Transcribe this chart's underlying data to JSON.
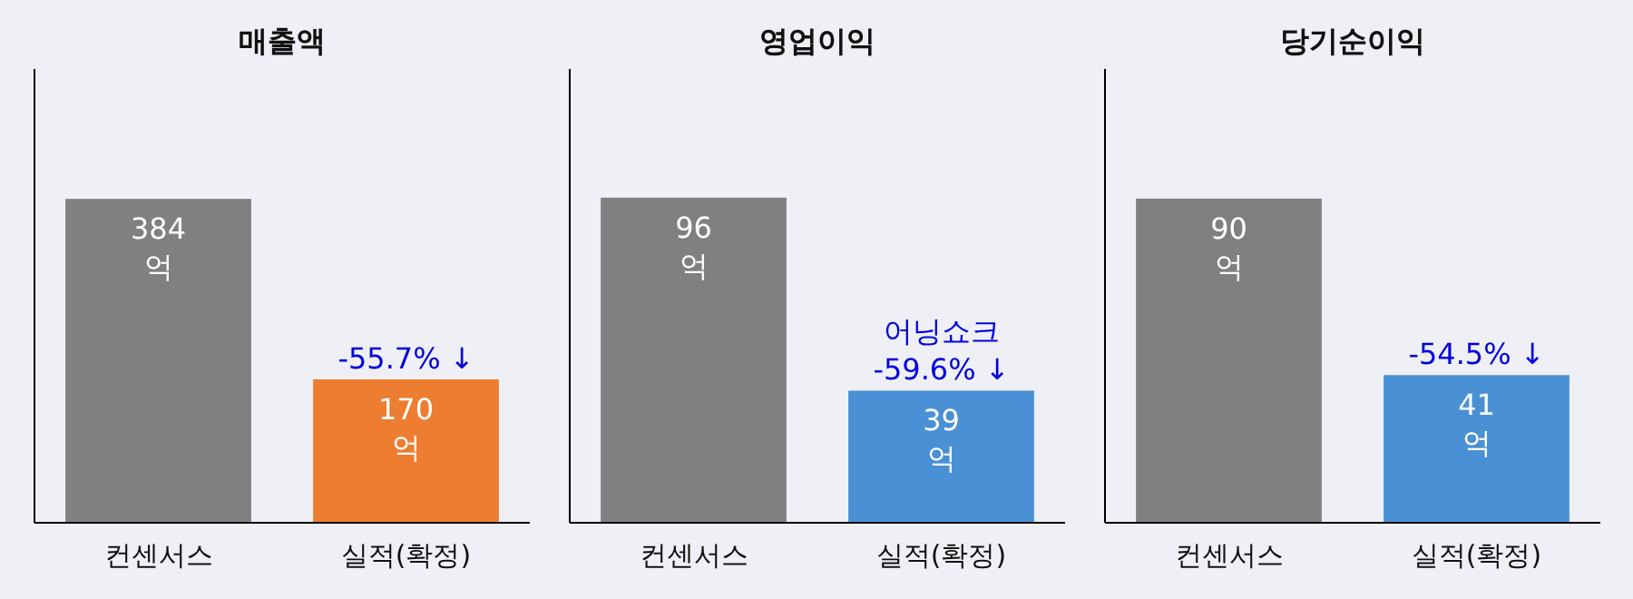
{
  "chart_data": [
    {
      "type": "bar",
      "title": "매출액",
      "categories": [
        "컨센서스",
        "실적(확정)"
      ],
      "values": [
        384,
        170
      ],
      "colors": [
        "#808080",
        "#ed7d31"
      ],
      "value_labels": [
        "384\n억",
        "170\n억"
      ],
      "ylim": [
        0,
        538
      ],
      "annotations": [
        {
          "text": "-55.7% ↓",
          "x": "실적(확정)",
          "y": 170
        }
      ]
    },
    {
      "type": "bar",
      "title": "영업이익",
      "categories": [
        "컨센서스",
        "실적(확정)"
      ],
      "values": [
        96,
        39
      ],
      "colors": [
        "#808080",
        "#4a90d4"
      ],
      "value_labels": [
        "96\n억",
        "39\n억"
      ],
      "ylim": [
        0,
        134
      ],
      "annotations": [
        {
          "text": "어닝쇼크\n-59.6% ↓",
          "x": "실적(확정)",
          "y": 39
        }
      ]
    },
    {
      "type": "bar",
      "title": "당기순이익",
      "categories": [
        "컨센서스",
        "실적(확정)"
      ],
      "values": [
        90,
        41
      ],
      "colors": [
        "#808080",
        "#4a90d4"
      ],
      "value_labels": [
        "90\n억",
        "41\n억"
      ],
      "ylim": [
        0,
        126
      ],
      "annotations": [
        {
          "text": "-54.5% ↓",
          "x": "실적(확정)",
          "y": 41
        }
      ]
    }
  ]
}
